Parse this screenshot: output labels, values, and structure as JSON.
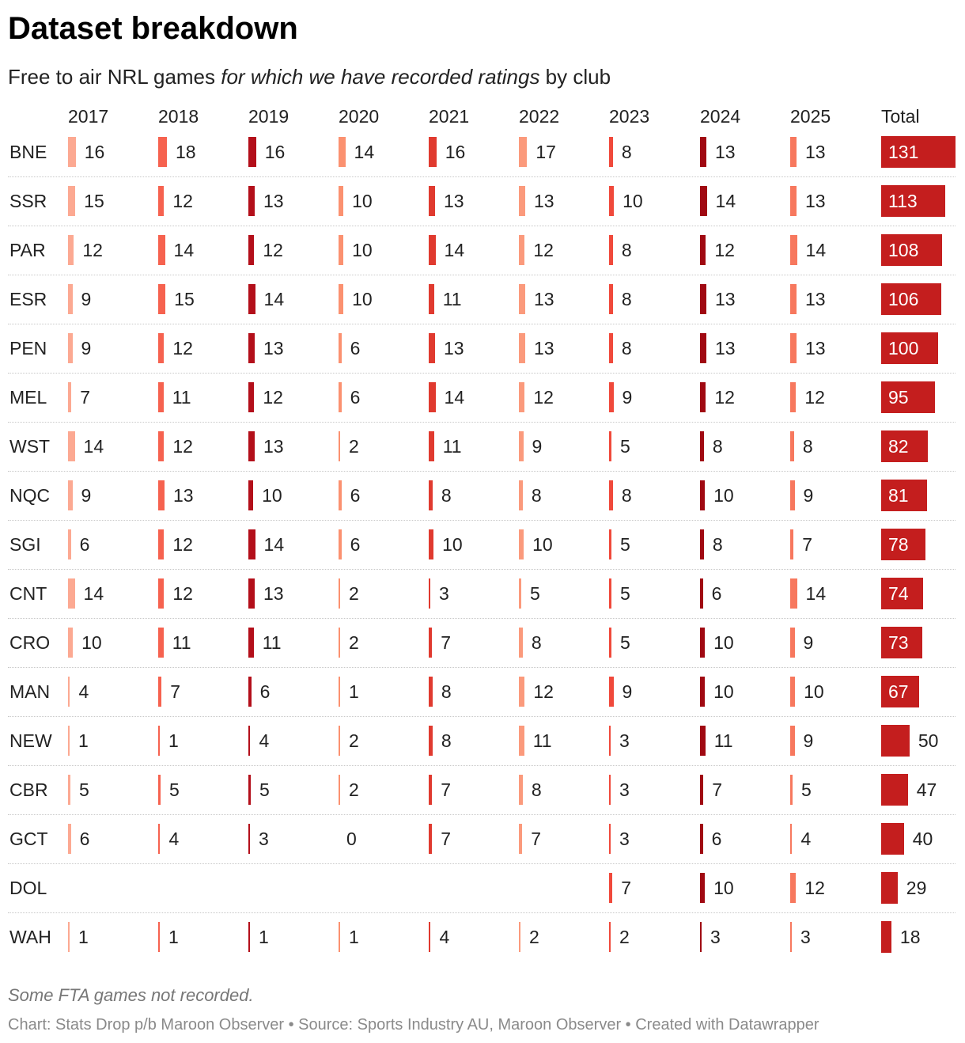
{
  "title": "Dataset breakdown",
  "subtitle": {
    "part1": "Free to air NRL games ",
    "italic": "for which we have recorded ratings",
    "part2": " by club"
  },
  "note": "Some FTA games not recorded.",
  "footer": "Chart: Stats Drop p/b Maroon Observer • Source: Sports Industry AU, Maroon Observer • Created with Datawrapper",
  "colors": {
    "2017": "#fca992",
    "2018": "#f6624f",
    "2019": "#b30f1a",
    "2020": "#fb9170",
    "2021": "#e03a2f",
    "2022": "#fb9a7c",
    "2023": "#f0493b",
    "2024": "#a00912",
    "2025": "#f7785e",
    "total": "#c41e1e"
  },
  "chart_data": {
    "type": "table",
    "title": "Dataset breakdown",
    "columns": [
      "2017",
      "2018",
      "2019",
      "2020",
      "2021",
      "2022",
      "2023",
      "2024",
      "2025",
      "Total"
    ],
    "rows": [
      {
        "club": "BNE",
        "values": [
          16,
          18,
          16,
          14,
          16,
          17,
          8,
          13,
          13
        ],
        "total": 131
      },
      {
        "club": "SSR",
        "values": [
          15,
          12,
          13,
          10,
          13,
          13,
          10,
          14,
          13
        ],
        "total": 113
      },
      {
        "club": "PAR",
        "values": [
          12,
          14,
          12,
          10,
          14,
          12,
          8,
          12,
          14
        ],
        "total": 108
      },
      {
        "club": "ESR",
        "values": [
          9,
          15,
          14,
          10,
          11,
          13,
          8,
          13,
          13
        ],
        "total": 106
      },
      {
        "club": "PEN",
        "values": [
          9,
          12,
          13,
          6,
          13,
          13,
          8,
          13,
          13
        ],
        "total": 100
      },
      {
        "club": "MEL",
        "values": [
          7,
          11,
          12,
          6,
          14,
          12,
          9,
          12,
          12
        ],
        "total": 95
      },
      {
        "club": "WST",
        "values": [
          14,
          12,
          13,
          2,
          11,
          9,
          5,
          8,
          8
        ],
        "total": 82
      },
      {
        "club": "NQC",
        "values": [
          9,
          13,
          10,
          6,
          8,
          8,
          8,
          10,
          9
        ],
        "total": 81
      },
      {
        "club": "SGI",
        "values": [
          6,
          12,
          14,
          6,
          10,
          10,
          5,
          8,
          7
        ],
        "total": 78
      },
      {
        "club": "CNT",
        "values": [
          14,
          12,
          13,
          2,
          3,
          5,
          5,
          6,
          14
        ],
        "total": 74
      },
      {
        "club": "CRO",
        "values": [
          10,
          11,
          11,
          2,
          7,
          8,
          5,
          10,
          9
        ],
        "total": 73
      },
      {
        "club": "MAN",
        "values": [
          4,
          7,
          6,
          1,
          8,
          12,
          9,
          10,
          10
        ],
        "total": 67
      },
      {
        "club": "NEW",
        "values": [
          1,
          1,
          4,
          2,
          8,
          11,
          3,
          11,
          9
        ],
        "total": 50
      },
      {
        "club": "CBR",
        "values": [
          5,
          5,
          5,
          2,
          7,
          8,
          3,
          7,
          5
        ],
        "total": 47
      },
      {
        "club": "GCT",
        "values": [
          6,
          4,
          3,
          0,
          7,
          7,
          3,
          6,
          4
        ],
        "total": 40
      },
      {
        "club": "DOL",
        "values": [
          null,
          null,
          null,
          null,
          null,
          null,
          7,
          10,
          12
        ],
        "total": 29
      },
      {
        "club": "WAH",
        "values": [
          1,
          1,
          1,
          1,
          4,
          2,
          2,
          3,
          3
        ],
        "total": 18
      }
    ]
  }
}
